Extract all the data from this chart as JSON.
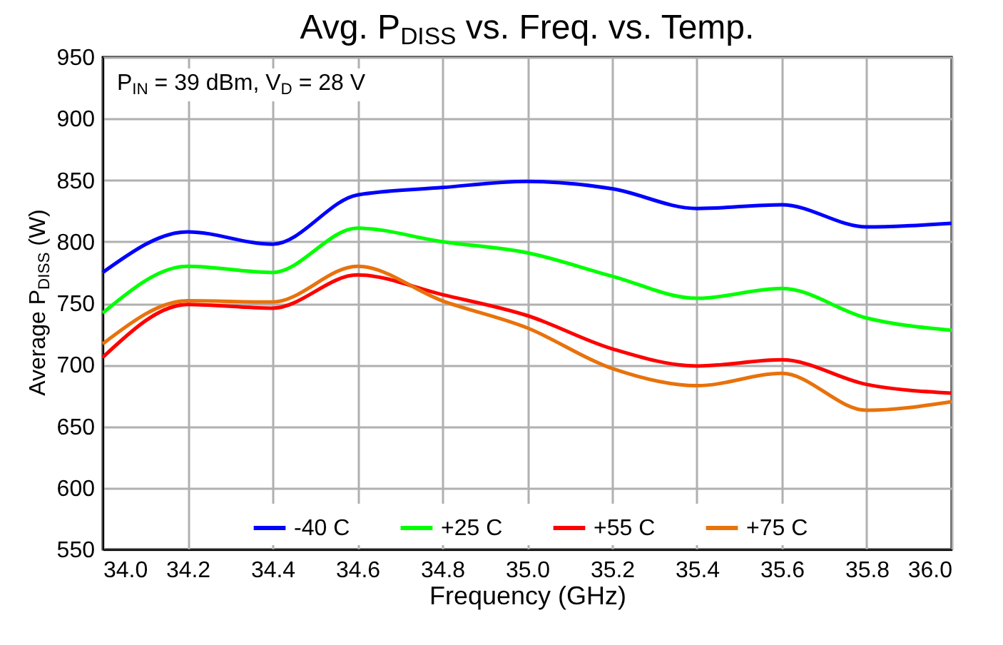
{
  "chart_data": {
    "type": "line",
    "title": "Avg. P$_{DISS}$ vs. Freq. vs. Temp.",
    "xlabel": "Frequency (GHz)",
    "ylabel": "Average P$_{DISS}$ (W)",
    "annotations": [
      "P$_{IN}$ = 39 dBm, V$_{D}$ = 28 V"
    ],
    "x": [
      34.0,
      34.2,
      34.4,
      34.6,
      34.8,
      35.0,
      35.2,
      35.4,
      35.6,
      35.8,
      36.0
    ],
    "series": [
      {
        "name": "-40 C",
        "color": "#0000ff",
        "values": [
          775,
          808,
          798,
          838,
          844,
          849,
          843,
          827,
          830,
          812,
          815
        ]
      },
      {
        "name": "+25 C",
        "color": "#00ff00",
        "values": [
          742,
          780,
          775,
          811,
          800,
          791,
          772,
          754,
          762,
          738,
          728
        ]
      },
      {
        "name": "+55 C",
        "color": "#ff0000",
        "values": [
          706,
          749,
          746,
          773,
          757,
          740,
          713,
          699,
          704,
          684,
          677
        ]
      },
      {
        "name": "+75 C",
        "color": "#e8720c",
        "values": [
          717,
          752,
          751,
          780,
          752,
          730,
          697,
          683,
          693,
          663,
          670
        ]
      }
    ],
    "xlim": [
      34.0,
      36.0
    ],
    "xticks": [
      {
        "value": 34,
        "label": "34.0"
      },
      {
        "value": 34.2,
        "label": "34.2"
      },
      {
        "value": 34.4,
        "label": "34.4"
      },
      {
        "value": 34.6,
        "label": "34.6"
      },
      {
        "value": 34.8,
        "label": "34.8"
      },
      {
        "value": 35,
        "label": "35.0"
      },
      {
        "value": 35.2,
        "label": "35.2"
      },
      {
        "value": 35.4,
        "label": "35.4"
      },
      {
        "value": 35.6,
        "label": "35.6"
      },
      {
        "value": 35.8,
        "label": "35.8"
      },
      {
        "value": 36,
        "label": "36.0"
      }
    ],
    "ylim": [
      550,
      950
    ],
    "yticks": [
      550,
      600,
      650,
      700,
      750,
      800,
      850,
      900,
      950
    ],
    "grid": true,
    "legend": "bottom",
    "marker": "none",
    "line_style": "solid"
  }
}
